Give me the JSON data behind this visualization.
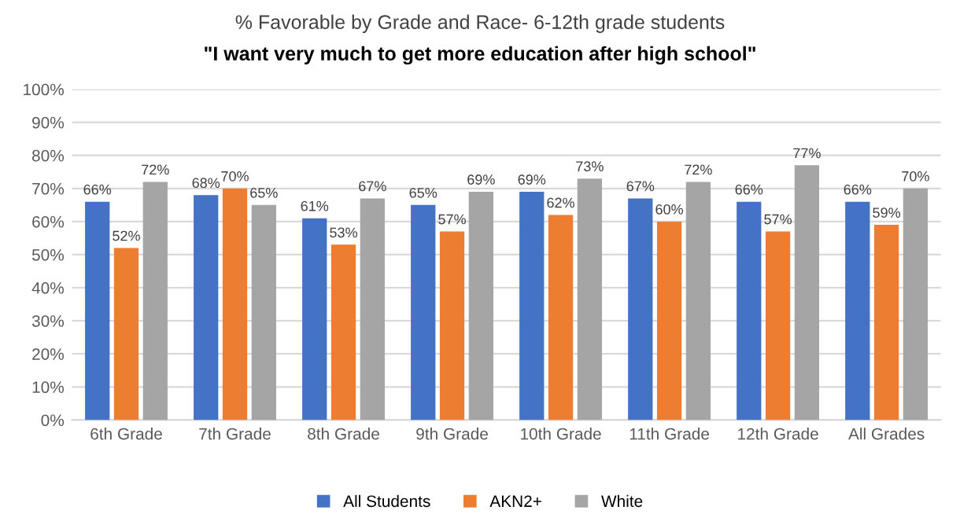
{
  "chart_data": {
    "type": "bar",
    "title": "% Favorable by Grade and Race- 6-12th grade students",
    "subtitle": "\"I want very much to get more education after high school\"",
    "categories": [
      "6th Grade",
      "7th Grade",
      "8th Grade",
      "9th Grade",
      "10th Grade",
      "11th Grade",
      "12th Grade",
      "All Grades"
    ],
    "series": [
      {
        "name": "All Students",
        "color": "#4472c4",
        "values": [
          66,
          68,
          61,
          65,
          69,
          67,
          66,
          66
        ],
        "value_labels": [
          "66%",
          "68%",
          "61%",
          "65%",
          "69%",
          "67%",
          "66%",
          "66%"
        ]
      },
      {
        "name": "AKN2+",
        "color": "#ed7d31",
        "values": [
          52,
          70,
          53,
          57,
          62,
          60,
          57,
          59
        ],
        "value_labels": [
          "52%",
          "70%",
          "53%",
          "57%",
          "62%",
          "60%",
          "57%",
          "59%"
        ]
      },
      {
        "name": "White",
        "color": "#a5a5a5",
        "values": [
          72,
          65,
          67,
          69,
          73,
          72,
          77,
          70
        ],
        "value_labels": [
          "72%",
          "65%",
          "67%",
          "69%",
          "73%",
          "72%",
          "77%",
          "70%"
        ]
      }
    ],
    "ylim": [
      0,
      100
    ],
    "yticks": [
      {
        "value": 0,
        "label": "0%"
      },
      {
        "value": 10,
        "label": "10%"
      },
      {
        "value": 20,
        "label": "20%"
      },
      {
        "value": 30,
        "label": "30%"
      },
      {
        "value": 40,
        "label": "40%"
      },
      {
        "value": 50,
        "label": "50%"
      },
      {
        "value": 60,
        "label": "60%"
      },
      {
        "value": 70,
        "label": "70%"
      },
      {
        "value": 80,
        "label": "80%"
      },
      {
        "value": 90,
        "label": "90%"
      },
      {
        "value": 100,
        "label": "100%"
      }
    ],
    "grid": "y",
    "legend": "bottom"
  }
}
